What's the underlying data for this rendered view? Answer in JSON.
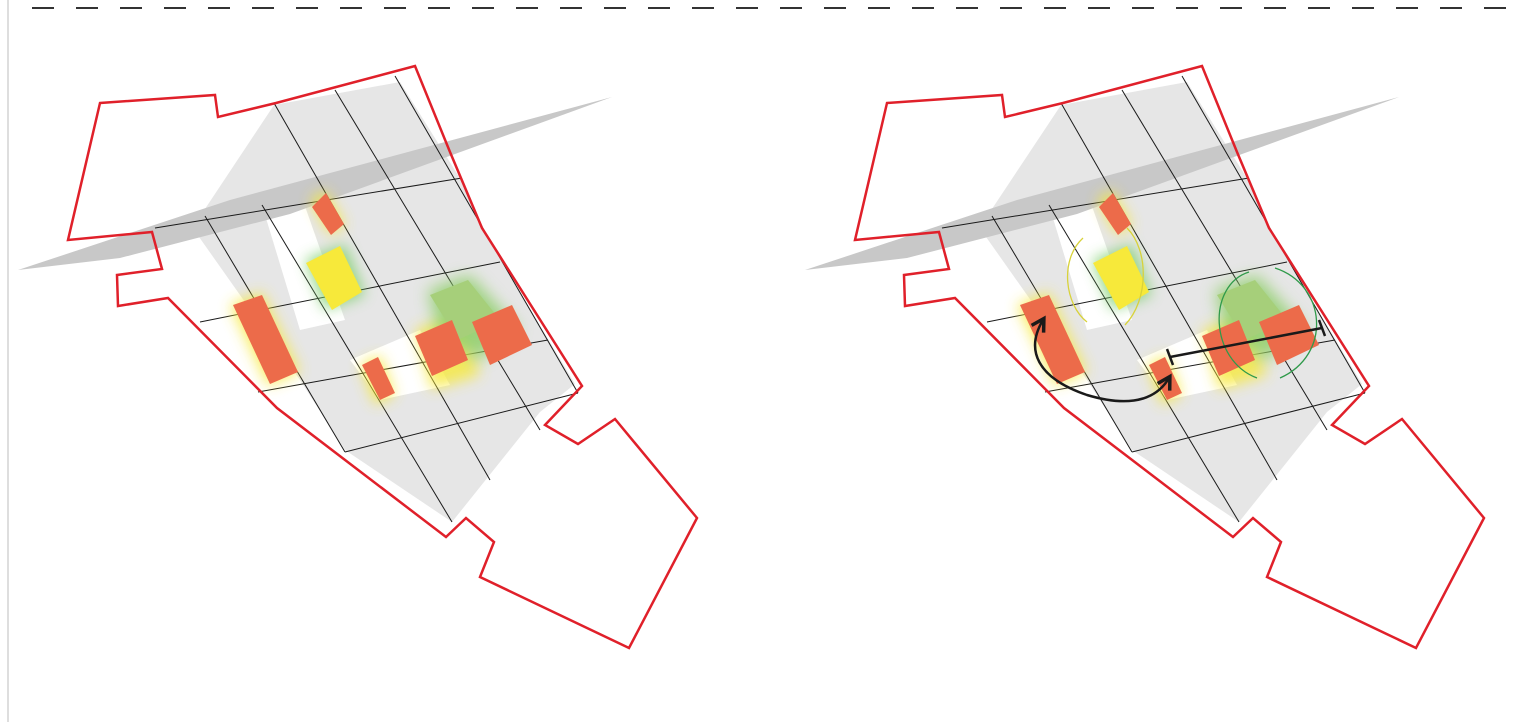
{
  "colors": {
    "background": "#ffffff",
    "boundary": "#e0202a",
    "zone_fill": "#e6e6e6",
    "grid_line": "#1a1a1a",
    "axis_band": "#c8c8c8",
    "orange_block": "#ec6b4a",
    "yellow_block": "#f7e93a",
    "green_block": "#a6cf7a",
    "yellow_arc": "#d8d23a",
    "green_arc": "#2f9a4a",
    "arrow": "#1a1a1a",
    "dash": "#333333",
    "frame": "#bdbdbd"
  },
  "panels": [
    {
      "name": "site-plan-before",
      "annotated": false
    },
    {
      "name": "site-plan-after",
      "annotated": true
    }
  ],
  "icons": {
    "curved_arrow": "curved-double-arrow-icon",
    "bar_arrow": "bar-arrow-icon"
  }
}
